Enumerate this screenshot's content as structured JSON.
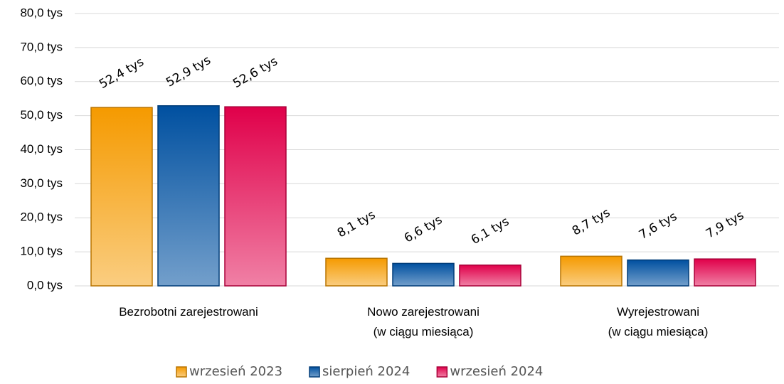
{
  "chart_data": {
    "type": "bar",
    "categories": [
      "Bezrobotni zarejestrowani",
      "Nowo zarejestrowani\n(w ciągu miesiąca)",
      "Wyrejestrowani\n(w ciągu miesiąca)"
    ],
    "series": [
      {
        "name": "wrzesień 2023",
        "color": "#f59a00",
        "label_color": "#b86a14",
        "values": [
          52.4,
          8.1,
          8.7
        ],
        "value_labels": [
          "52,4 tys",
          "8,1 tys",
          "8,7 tys"
        ]
      },
      {
        "name": "sierpień 2024",
        "color": "#0050a0",
        "label_color": "#1f3d8c",
        "values": [
          52.9,
          6.6,
          7.6
        ],
        "value_labels": [
          "52,9 tys",
          "6,6 tys",
          "7,6 tys"
        ]
      },
      {
        "name": "wrzesień 2024",
        "color": "#e0004a",
        "label_color": "#c0102a",
        "values": [
          52.6,
          6.1,
          7.9
        ],
        "value_labels": [
          "52,6 tys",
          "6,1 tys",
          "7,9 tys"
        ]
      }
    ],
    "ylim": [
      0,
      80
    ],
    "yticks": [
      {
        "value": 0,
        "label": "0,0 tys"
      },
      {
        "value": 10,
        "label": "10,0 tys"
      },
      {
        "value": 20,
        "label": "20,0 tys"
      },
      {
        "value": 30,
        "label": "30,0 tys"
      },
      {
        "value": 40,
        "label": "40,0 tys"
      },
      {
        "value": 50,
        "label": "50,0 tys"
      },
      {
        "value": 60,
        "label": "60,0 tys"
      },
      {
        "value": 70,
        "label": "70,0 tys"
      },
      {
        "value": 80,
        "label": "80,0 tys"
      }
    ],
    "grid": true,
    "legend": "bottom"
  }
}
